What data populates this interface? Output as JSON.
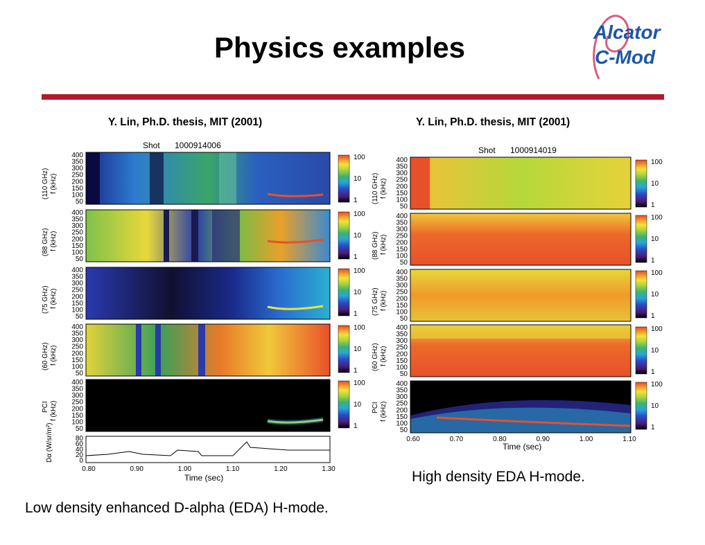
{
  "slide": {
    "title": "Physics examples",
    "logo_text": [
      "Alcator",
      "C-Mod"
    ],
    "colors": {
      "rule": "#b01c2e",
      "logo": "#1d56a8",
      "logo_swoosh": "#d95b7d"
    }
  },
  "figures": [
    {
      "citation": "Y. Lin, Ph.D. thesis, MIT (2001)",
      "shot_label": "Shot",
      "shot_number": "1000914006",
      "panels": [
        {
          "label_line1": "(110 GHz)",
          "label_line2": "f (kHz)"
        },
        {
          "label_line1": "(88 GHz)",
          "label_line2": "f (kHz)"
        },
        {
          "label_line1": "(75 GHz)",
          "label_line2": "f (kHz)"
        },
        {
          "label_line1": "(60 GHz)",
          "label_line2": "f (kHz)"
        },
        {
          "label_line1": "PCI",
          "label_line2": "f (kHz)"
        }
      ],
      "freq_ticks": [
        "400",
        "350",
        "300",
        "250",
        "200",
        "150",
        "100",
        "50"
      ],
      "colorbar_ticks": [
        "100",
        "10",
        "1"
      ],
      "dalpha_label": "Dα (W/sr/m²)",
      "dalpha_ticks": [
        "80",
        "60",
        "40",
        "20",
        "0"
      ],
      "time_ticks": [
        "0.80",
        "0.90",
        "1.00",
        "1.10",
        "1.20",
        "1.30"
      ],
      "xlabel": "Time (sec)",
      "note": "Low density enhanced D-alpha (EDA) H-mode."
    },
    {
      "citation": "Y. Lin, Ph.D. thesis, MIT (2001)",
      "shot_label": "Shot",
      "shot_number": "1000914019",
      "panels": [
        {
          "label_line1": "(110 GHz)",
          "label_line2": "f (kHz)"
        },
        {
          "label_line1": "(88 GHz)",
          "label_line2": "f (kHz)"
        },
        {
          "label_line1": "(75 GHz)",
          "label_line2": "f (kHz)"
        },
        {
          "label_line1": "(60 GHz)",
          "label_line2": "f (kHz)"
        },
        {
          "label_line1": "PCI",
          "label_line2": "f (kHz)"
        }
      ],
      "freq_ticks": [
        "400",
        "350",
        "300",
        "250",
        "200",
        "150",
        "100",
        "50"
      ],
      "colorbar_ticks": [
        "100",
        "10",
        "1"
      ],
      "time_ticks": [
        "0.60",
        "0.70",
        "0.80",
        "0.90",
        "1.00",
        "1.10"
      ],
      "xlabel": "Time (sec)",
      "note": "High density EDA H-mode."
    }
  ]
}
